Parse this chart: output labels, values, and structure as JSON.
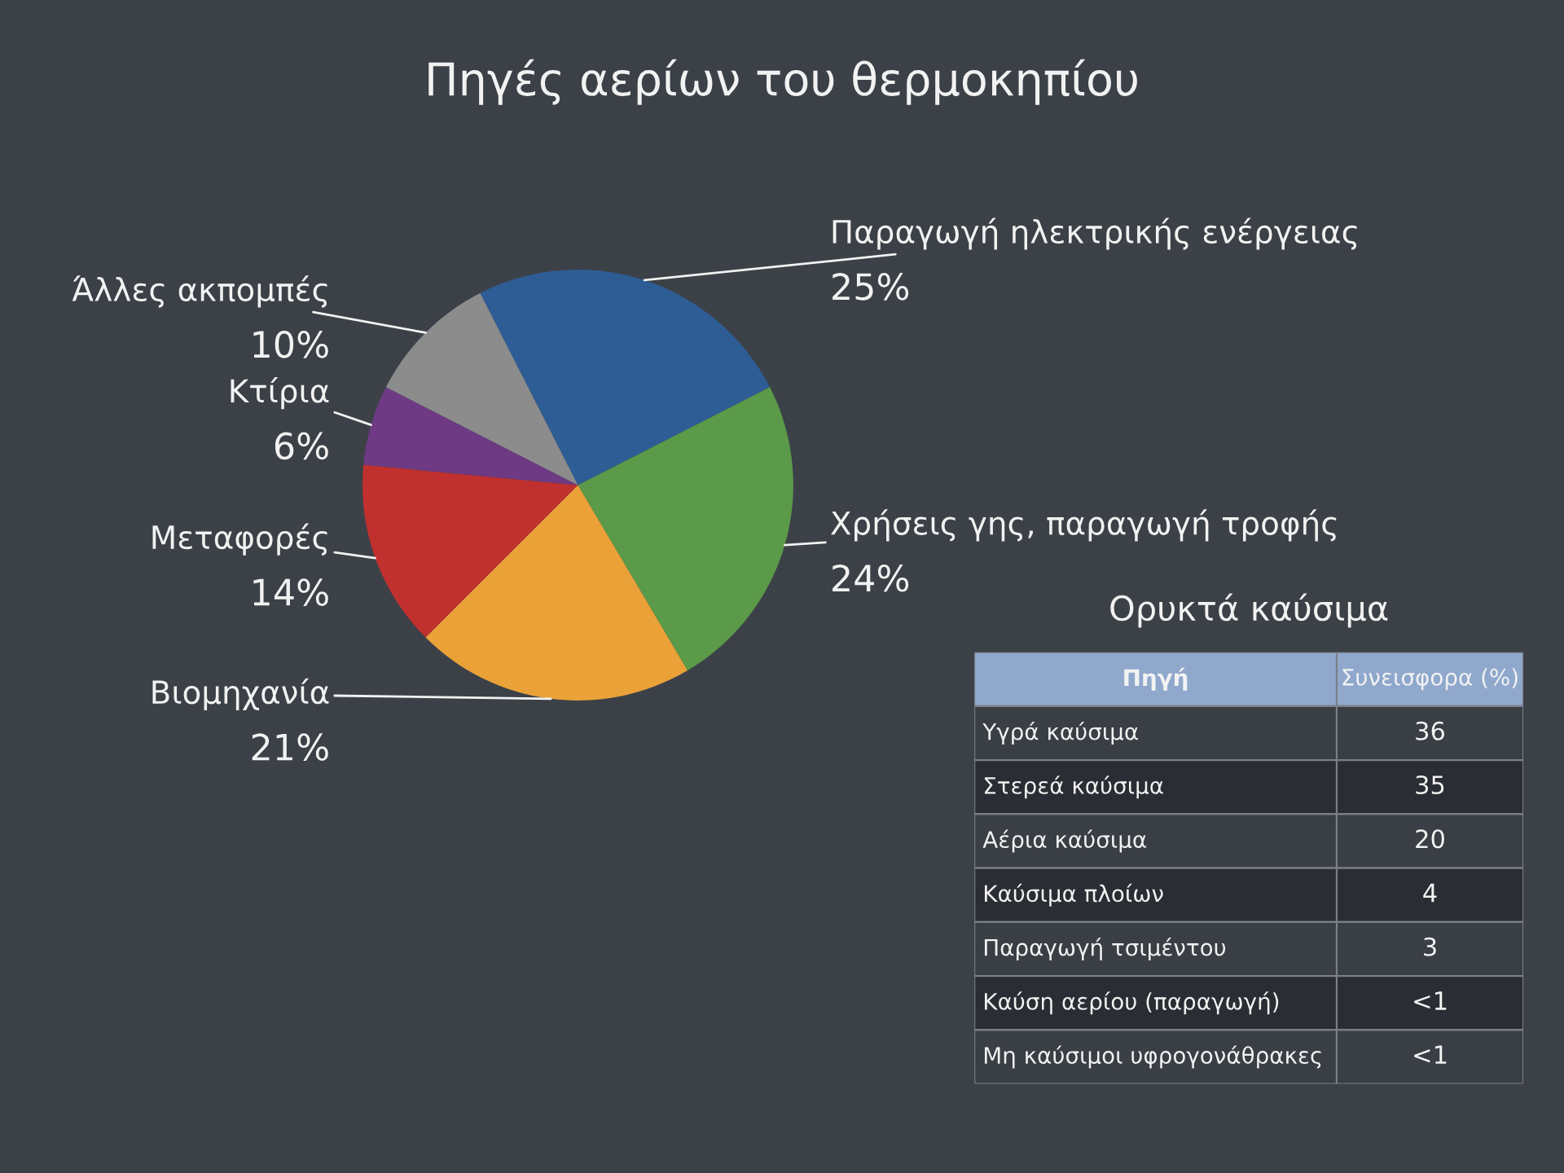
{
  "chart_data": [
    {
      "type": "pie",
      "title": "Πηγές αερίων του θερμοκηπίου",
      "categories": [
        "Παραγωγή ηλεκτρικής ενέργειας",
        "Χρήσεις γης, παραγωγή τροφής",
        "Βιομηχανία",
        "Μεταφορές",
        "Κτίρια",
        "Άλλες ακπομπές"
      ],
      "values": [
        25,
        24,
        21,
        14,
        6,
        10
      ],
      "value_labels": [
        "25%",
        "24%",
        "21%",
        "14%",
        "6%",
        "10%"
      ],
      "colors": [
        "#2e5d95",
        "#5b9a48",
        "#eaa238",
        "#c0302f",
        "#6d3a83",
        "#8c8c8c"
      ],
      "legend": false
    },
    {
      "type": "other",
      "title": "Ορυκτά καύσιμα",
      "annotations": [
        "Πηγή",
        "Συνεισφορα (%)"
      ],
      "categories": [
        "Υγρά καύσιμα",
        "Στερεά καύσιμα",
        "Αέρια καύσιμα",
        "Καύσιμα πλοίων",
        "Παραγωγή τσιμέντου",
        "Καύση αερίου (παραγωγή)",
        "Μη καύσιμοι υφρογονάθρακες"
      ],
      "value_labels": [
        "36",
        "35",
        "20",
        "4",
        "3",
        "<1",
        "<1"
      ]
    }
  ]
}
